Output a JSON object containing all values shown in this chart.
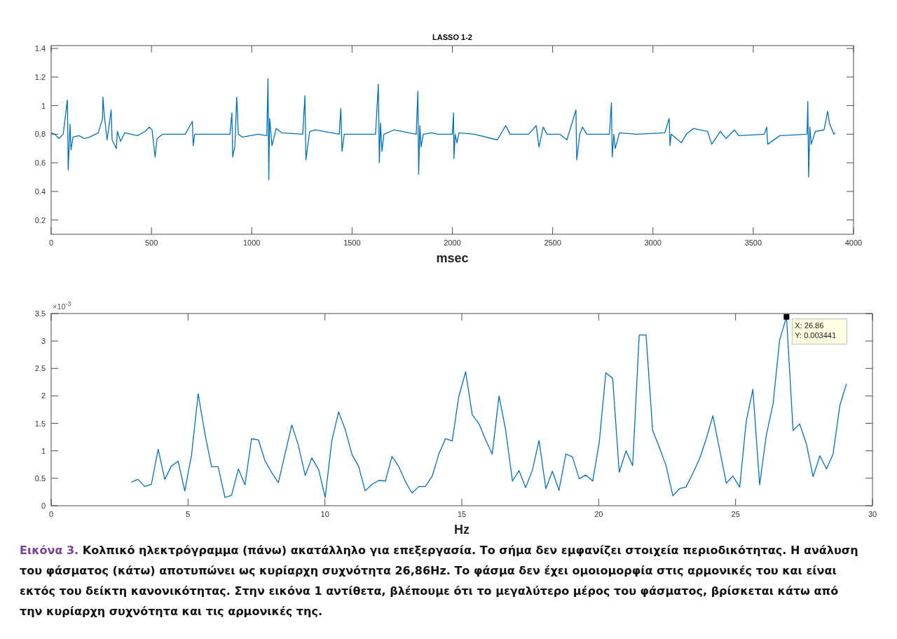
{
  "chart_data": [
    {
      "type": "line",
      "title": "LASSO 1-2",
      "xlabel": "msec",
      "xlim": [
        0,
        4000
      ],
      "xticks": [
        0,
        500,
        1000,
        1500,
        2000,
        2500,
        3000,
        3500,
        4000
      ],
      "ylim": [
        0.1,
        1.42
      ],
      "yticks": [
        0.2,
        0.4,
        0.6,
        0.8,
        1,
        1.2,
        1.4
      ],
      "grid": false,
      "series": [
        {
          "color": "#0072bd",
          "x": [
            0,
            18,
            39,
            60,
            81,
            85,
            94,
            99,
            109,
            140,
            165,
            193,
            235,
            256,
            258,
            265,
            279,
            299,
            304,
            325,
            330,
            346,
            367,
            430,
            469,
            489,
            503,
            518,
            528,
            556,
            668,
            704,
            708,
            716,
            891,
            901,
            905,
            916,
            925,
            933,
            954,
            1031,
            1075,
            1081,
            1085,
            1089,
            1101,
            1122,
            1149,
            1254,
            1265,
            1270,
            1279,
            1289,
            1317,
            1436,
            1444,
            1450,
            1461,
            1506,
            1617,
            1631,
            1636,
            1642,
            1649,
            1659,
            1708,
            1820,
            1828,
            1832,
            1838,
            1844,
            1855,
            1897,
            1926,
            2000,
            2006,
            2008,
            2014,
            2023,
            2033,
            2110,
            2224,
            2266,
            2288,
            2380,
            2418,
            2432,
            2453,
            2472,
            2535,
            2571,
            2616,
            2620,
            2635,
            2649,
            2670,
            2783,
            2793,
            2797,
            2805,
            2812,
            2833,
            2918,
            3059,
            3081,
            3085,
            3091,
            3142,
            3166,
            3201,
            3272,
            3293,
            3336,
            3364,
            3406,
            3428,
            3555,
            3567,
            3572,
            3633,
            3768,
            3772,
            3776,
            3782,
            3789,
            3810,
            3853,
            3871,
            3881,
            3902,
            3909
          ],
          "values": [
            0.81,
            0.8,
            0.77,
            0.8,
            1.04,
            0.55,
            0.87,
            0.69,
            0.78,
            0.79,
            0.77,
            0.78,
            0.81,
            0.91,
            1.06,
            0.93,
            0.76,
            0.97,
            0.76,
            0.7,
            0.82,
            0.75,
            0.81,
            0.79,
            0.82,
            0.85,
            0.83,
            0.64,
            0.77,
            0.8,
            0.8,
            0.89,
            0.72,
            0.8,
            0.8,
            0.95,
            0.64,
            0.72,
            1.06,
            0.8,
            0.78,
            0.8,
            0.79,
            1.19,
            0.48,
            0.91,
            0.72,
            0.84,
            0.81,
            0.8,
            1.07,
            0.62,
            0.72,
            0.82,
            0.83,
            0.8,
            0.98,
            0.68,
            0.8,
            0.8,
            0.8,
            1.15,
            0.6,
            0.88,
            0.68,
            0.8,
            0.83,
            0.8,
            1.1,
            0.52,
            0.86,
            0.71,
            0.8,
            0.81,
            0.8,
            0.8,
            0.95,
            0.63,
            0.8,
            0.74,
            0.81,
            0.8,
            0.76,
            0.86,
            0.8,
            0.8,
            0.86,
            0.71,
            0.85,
            0.8,
            0.8,
            0.76,
            0.97,
            0.62,
            0.8,
            0.85,
            0.8,
            0.8,
            1.02,
            0.64,
            0.8,
            0.7,
            0.81,
            0.8,
            0.81,
            0.91,
            0.72,
            0.8,
            0.74,
            0.8,
            0.84,
            0.82,
            0.73,
            0.82,
            0.77,
            0.83,
            0.79,
            0.8,
            0.85,
            0.73,
            0.79,
            0.8,
            1.03,
            0.5,
            0.85,
            0.73,
            0.82,
            0.83,
            0.96,
            0.87,
            0.8,
            0.81
          ]
        }
      ]
    },
    {
      "type": "line",
      "xlabel": "Hz",
      "xlim": [
        0,
        30
      ],
      "xticks": [
        0,
        5,
        10,
        15,
        20,
        25,
        30
      ],
      "ylim": [
        0,
        3.5
      ],
      "yticks": [
        0,
        0.5,
        1,
        1.5,
        2,
        2.5,
        3,
        3.5
      ],
      "grid": false,
      "annotations": [
        "×10$^{-3}$",
        {
          "text": "X: 26.86",
          "x": 26.86,
          "y": 3.44
        },
        {
          "text": "Y: 0.003441",
          "x": 26.86,
          "y": 3.44
        },
        "Εικόνα 3.",
        "Κολπικό ηλεκτρόγραμμα (πάνω) ακατάλληλο για επεξεργασία. Το σήμα δεν εμφανίζει στοιχεία περιοδικότητας. Η ανάλυση του φάσματος (κάτω) αποτυπώνει ως κυρίαρχη συχνότητα 26,86Hz. Το φάσμα δεν έχει ομοιομορφία στις αρμονικές του και είναι εκτός του δείκτη κανονικότητας. Στην εικόνα 1 αντίθετα, βλέπουμε ότι το μεγαλύτερο μέρος του φάσματος, βρίσκεται κάτω από την κυρίαρχη συχνότητα και τις αρμονικές της."
      ],
      "series": [
        {
          "color": "#0072bd",
          "x": [
            2.93,
            3.17,
            3.42,
            3.66,
            3.91,
            4.15,
            4.39,
            4.64,
            4.88,
            5.13,
            5.37,
            5.62,
            5.86,
            6.1,
            6.35,
            6.59,
            6.84,
            7.08,
            7.32,
            7.57,
            7.81,
            8.06,
            8.3,
            8.54,
            8.79,
            9.03,
            9.28,
            9.52,
            9.77,
            10.01,
            10.25,
            10.5,
            10.74,
            10.99,
            11.23,
            11.47,
            11.72,
            11.96,
            12.21,
            12.45,
            12.7,
            12.94,
            13.18,
            13.43,
            13.67,
            13.92,
            14.16,
            14.4,
            14.65,
            14.89,
            15.14,
            15.38,
            15.63,
            15.87,
            16.11,
            16.36,
            16.6,
            16.85,
            17.09,
            17.33,
            17.58,
            17.82,
            18.07,
            18.31,
            18.55,
            18.8,
            19.04,
            19.29,
            19.53,
            19.78,
            20.02,
            20.26,
            20.51,
            20.75,
            21.0,
            21.24,
            21.48,
            21.73,
            21.97,
            22.22,
            22.46,
            22.71,
            22.95,
            23.19,
            23.44,
            23.68,
            23.93,
            24.17,
            24.41,
            24.66,
            24.9,
            25.15,
            25.39,
            25.63,
            25.88,
            26.12,
            26.37,
            26.61,
            26.86,
            27.1,
            27.34,
            27.59,
            27.83,
            28.08,
            28.32,
            28.56,
            28.81,
            29.05
          ],
          "values": [
            0.43,
            0.48,
            0.35,
            0.39,
            1.03,
            0.48,
            0.72,
            0.81,
            0.27,
            0.93,
            2.04,
            1.3,
            0.71,
            0.71,
            0.15,
            0.19,
            0.67,
            0.38,
            1.22,
            1.2,
            0.82,
            0.6,
            0.42,
            0.94,
            1.47,
            1.1,
            0.55,
            0.87,
            0.66,
            0.15,
            1.18,
            1.71,
            1.39,
            0.93,
            0.72,
            0.27,
            0.39,
            0.46,
            0.45,
            0.9,
            0.71,
            0.44,
            0.23,
            0.35,
            0.35,
            0.54,
            0.94,
            1.22,
            1.18,
            1.99,
            2.44,
            1.66,
            1.49,
            1.2,
            0.94,
            2.0,
            1.38,
            0.45,
            0.64,
            0.33,
            0.65,
            1.19,
            0.31,
            0.63,
            0.28,
            0.94,
            0.89,
            0.49,
            0.56,
            0.45,
            1.15,
            2.42,
            2.32,
            0.61,
            1.0,
            0.73,
            3.11,
            3.11,
            1.37,
            1.06,
            0.73,
            0.18,
            0.31,
            0.34,
            0.59,
            0.85,
            1.22,
            1.64,
            1.04,
            0.41,
            0.54,
            0.34,
            1.54,
            2.12,
            0.38,
            1.28,
            1.86,
            3.02,
            3.44,
            1.37,
            1.49,
            1.12,
            0.53,
            0.91,
            0.67,
            0.94,
            1.83,
            2.22
          ]
        }
      ]
    }
  ]
}
